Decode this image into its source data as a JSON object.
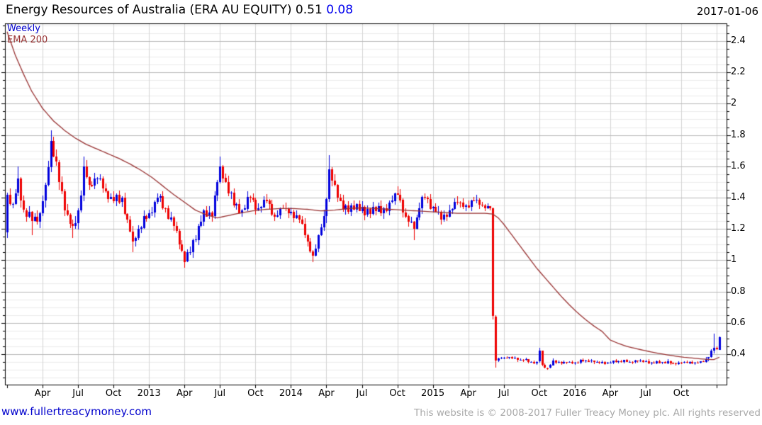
{
  "header": {
    "title_main": "Energy Resources of Australia (ERA AU EQUITY) 0.51",
    "last_price": "0.51",
    "change": "0.08",
    "date": "2017-01-06"
  },
  "legend": {
    "timeframe": "Weekly",
    "overlay": "EMA 200"
  },
  "footer": {
    "link": "www.fullertreacymoney.com",
    "copyright": "This website is © 2008-2017 Fuller Treacy Money plc. All rights reserved"
  },
  "chart_data": {
    "type": "candlestick",
    "title": "Energy Resources of Australia (ERA AU EQUITY)",
    "timeframe": "weekly",
    "x_range": [
      "2012-01",
      "2017-01"
    ],
    "weeks": 262,
    "first_open": 1.18,
    "y_axis": {
      "min": 0.205,
      "max": 2.513,
      "tick_major": 0.2,
      "tick_minor": 0.05,
      "major_ticks": [
        0.4,
        0.6,
        0.8,
        1,
        1.2,
        1.4,
        1.6,
        1.8,
        2,
        2.2,
        2.4
      ],
      "labels": [
        "0.4",
        "0.6",
        "0.8",
        "1",
        "1.2",
        "1.4",
        "1.6",
        "1.8",
        "2",
        "2.2",
        "2.4"
      ]
    },
    "x_labels": [
      {
        "label": "Apr",
        "week": 13
      },
      {
        "label": "Jul",
        "week": 26
      },
      {
        "label": "Oct",
        "week": 39
      },
      {
        "label": "2013",
        "week": 52
      },
      {
        "label": "Apr",
        "week": 65
      },
      {
        "label": "Jul",
        "week": 78
      },
      {
        "label": "Oct",
        "week": 91
      },
      {
        "label": "2014",
        "week": 104
      },
      {
        "label": "Apr",
        "week": 117
      },
      {
        "label": "Jul",
        "week": 130
      },
      {
        "label": "Oct",
        "week": 143
      },
      {
        "label": "2015",
        "week": 156
      },
      {
        "label": "Apr",
        "week": 169
      },
      {
        "label": "Jul",
        "week": 182
      },
      {
        "label": "Oct",
        "week": 195
      },
      {
        "label": "2016",
        "week": 208
      },
      {
        "label": "Apr",
        "week": 221
      },
      {
        "label": "Jul",
        "week": 234
      },
      {
        "label": "Oct",
        "week": 247
      }
    ],
    "x_ticks_unlabeled": [
      0,
      260
    ],
    "close_anchors": [
      [
        0,
        1.42,
        0.05
      ],
      [
        2,
        1.36,
        0.05
      ],
      [
        4,
        1.52,
        0.05
      ],
      [
        6,
        1.32,
        0.05
      ],
      [
        9,
        1.25,
        0.04
      ],
      [
        12,
        1.3,
        0.05
      ],
      [
        14,
        1.48,
        0.06
      ],
      [
        16,
        1.76,
        0.05
      ],
      [
        17,
        1.66,
        0.05
      ],
      [
        19,
        1.5,
        0.06
      ],
      [
        21,
        1.32,
        0.05
      ],
      [
        24,
        1.22,
        0.05
      ],
      [
        26,
        1.32,
        0.05
      ],
      [
        28,
        1.6,
        0.05
      ],
      [
        30,
        1.48,
        0.05
      ],
      [
        33,
        1.52,
        0.04
      ],
      [
        36,
        1.44,
        0.04
      ],
      [
        39,
        1.38,
        0.04
      ],
      [
        42,
        1.4,
        0.04
      ],
      [
        44,
        1.26,
        0.04
      ],
      [
        46,
        1.12,
        0.04
      ],
      [
        48,
        1.2,
        0.04
      ],
      [
        52,
        1.3,
        0.04
      ],
      [
        55,
        1.4,
        0.04
      ],
      [
        58,
        1.33,
        0.04
      ],
      [
        61,
        1.22,
        0.04
      ],
      [
        63,
        1.1,
        0.04
      ],
      [
        65,
        0.99,
        0.03
      ],
      [
        67,
        1.05,
        0.04
      ],
      [
        70,
        1.22,
        0.05
      ],
      [
        72,
        1.32,
        0.05
      ],
      [
        75,
        1.28,
        0.04
      ],
      [
        77,
        1.5,
        0.05
      ],
      [
        78,
        1.6,
        0.05
      ],
      [
        80,
        1.5,
        0.05
      ],
      [
        83,
        1.35,
        0.04
      ],
      [
        86,
        1.32,
        0.04
      ],
      [
        89,
        1.4,
        0.04
      ],
      [
        92,
        1.33,
        0.04
      ],
      [
        95,
        1.38,
        0.04
      ],
      [
        98,
        1.28,
        0.04
      ],
      [
        101,
        1.33,
        0.04
      ],
      [
        104,
        1.31,
        0.04
      ],
      [
        107,
        1.26,
        0.04
      ],
      [
        110,
        1.12,
        0.04
      ],
      [
        112,
        1.03,
        0.03
      ],
      [
        114,
        1.16,
        0.04
      ],
      [
        116,
        1.28,
        0.05
      ],
      [
        118,
        1.58,
        0.05
      ],
      [
        120,
        1.48,
        0.05
      ],
      [
        122,
        1.38,
        0.04
      ],
      [
        125,
        1.31,
        0.04
      ],
      [
        128,
        1.36,
        0.04
      ],
      [
        131,
        1.29,
        0.04
      ],
      [
        134,
        1.34,
        0.04
      ],
      [
        137,
        1.3,
        0.04
      ],
      [
        140,
        1.37,
        0.04
      ],
      [
        143,
        1.42,
        0.04
      ],
      [
        146,
        1.28,
        0.04
      ],
      [
        149,
        1.2,
        0.04
      ],
      [
        151,
        1.33,
        0.04
      ],
      [
        153,
        1.4,
        0.04
      ],
      [
        156,
        1.34,
        0.04
      ],
      [
        159,
        1.26,
        0.04
      ],
      [
        162,
        1.32,
        0.04
      ],
      [
        165,
        1.37,
        0.04
      ],
      [
        168,
        1.35,
        0.04
      ],
      [
        171,
        1.38,
        0.04
      ],
      [
        174,
        1.35,
        0.03
      ],
      [
        177,
        1.33,
        0.02
      ],
      [
        178,
        0.64,
        0.015
      ],
      [
        179,
        0.36,
        0.01
      ],
      [
        181,
        0.375,
        0.012
      ],
      [
        184,
        0.38,
        0.012
      ],
      [
        188,
        0.365,
        0.012
      ],
      [
        192,
        0.35,
        0.012
      ],
      [
        194,
        0.35,
        0.012
      ],
      [
        195,
        0.42,
        0.015
      ],
      [
        196,
        0.33,
        0.012
      ],
      [
        198,
        0.31,
        0.01
      ],
      [
        200,
        0.36,
        0.012
      ],
      [
        203,
        0.34,
        0.012
      ],
      [
        206,
        0.35,
        0.012
      ],
      [
        208,
        0.345,
        0.012
      ],
      [
        212,
        0.36,
        0.012
      ],
      [
        216,
        0.35,
        0.012
      ],
      [
        220,
        0.345,
        0.012
      ],
      [
        224,
        0.355,
        0.012
      ],
      [
        228,
        0.35,
        0.012
      ],
      [
        232,
        0.36,
        0.012
      ],
      [
        236,
        0.345,
        0.012
      ],
      [
        240,
        0.35,
        0.012
      ],
      [
        244,
        0.34,
        0.012
      ],
      [
        248,
        0.35,
        0.012
      ],
      [
        252,
        0.345,
        0.01
      ],
      [
        255,
        0.35,
        0.01
      ],
      [
        257,
        0.38,
        0.015
      ],
      [
        258,
        0.42,
        0.015
      ],
      [
        259,
        0.44,
        0.02
      ],
      [
        260,
        0.43,
        0.012
      ],
      [
        261,
        0.51,
        0.005
      ]
    ],
    "spike_highs": [
      [
        4,
        1.6
      ],
      [
        16,
        1.83
      ],
      [
        28,
        1.66
      ],
      [
        78,
        1.66
      ],
      [
        118,
        1.67
      ],
      [
        143,
        1.47
      ],
      [
        195,
        0.44
      ],
      [
        259,
        0.53
      ]
    ],
    "spike_lows": [
      [
        9,
        1.16
      ],
      [
        24,
        1.14
      ],
      [
        46,
        1.05
      ],
      [
        65,
        0.95
      ],
      [
        112,
        0.99
      ],
      [
        149,
        1.13
      ],
      [
        178,
        0.62
      ],
      [
        179,
        0.315
      ],
      [
        198,
        0.3
      ]
    ],
    "ema200_anchors": [
      [
        0,
        2.46
      ],
      [
        3,
        2.31
      ],
      [
        6,
        2.19
      ],
      [
        9,
        2.08
      ],
      [
        13,
        1.97
      ],
      [
        17,
        1.89
      ],
      [
        21,
        1.83
      ],
      [
        25,
        1.78
      ],
      [
        29,
        1.74
      ],
      [
        33,
        1.71
      ],
      [
        37,
        1.68
      ],
      [
        41,
        1.65
      ],
      [
        45,
        1.615
      ],
      [
        49,
        1.575
      ],
      [
        53,
        1.53
      ],
      [
        57,
        1.475
      ],
      [
        61,
        1.42
      ],
      [
        65,
        1.37
      ],
      [
        69,
        1.32
      ],
      [
        73,
        1.29
      ],
      [
        77,
        1.27
      ],
      [
        81,
        1.285
      ],
      [
        85,
        1.3
      ],
      [
        90,
        1.315
      ],
      [
        95,
        1.325
      ],
      [
        100,
        1.33
      ],
      [
        105,
        1.33
      ],
      [
        110,
        1.325
      ],
      [
        115,
        1.315
      ],
      [
        120,
        1.32
      ],
      [
        125,
        1.33
      ],
      [
        130,
        1.335
      ],
      [
        135,
        1.33
      ],
      [
        140,
        1.325
      ],
      [
        145,
        1.32
      ],
      [
        150,
        1.315
      ],
      [
        155,
        1.31
      ],
      [
        160,
        1.305
      ],
      [
        165,
        1.3
      ],
      [
        170,
        1.3
      ],
      [
        175,
        1.3
      ],
      [
        178,
        1.295
      ],
      [
        180,
        1.27
      ],
      [
        182,
        1.23
      ],
      [
        185,
        1.16
      ],
      [
        188,
        1.09
      ],
      [
        191,
        1.02
      ],
      [
        194,
        0.95
      ],
      [
        197,
        0.89
      ],
      [
        200,
        0.83
      ],
      [
        203,
        0.77
      ],
      [
        206,
        0.715
      ],
      [
        209,
        0.665
      ],
      [
        212,
        0.62
      ],
      [
        215,
        0.58
      ],
      [
        218,
        0.545
      ],
      [
        221,
        0.49
      ],
      [
        224,
        0.468
      ],
      [
        227,
        0.45
      ],
      [
        230,
        0.437
      ],
      [
        233,
        0.425
      ],
      [
        236,
        0.414
      ],
      [
        239,
        0.404
      ],
      [
        242,
        0.395
      ],
      [
        245,
        0.387
      ],
      [
        248,
        0.38
      ],
      [
        251,
        0.375
      ],
      [
        254,
        0.37
      ],
      [
        257,
        0.366
      ],
      [
        259,
        0.365
      ],
      [
        261,
        0.38
      ]
    ],
    "colors": {
      "up_candle": "#0000dd",
      "down_candle": "#ee0000",
      "ema_line": "#993333",
      "grid_major": "#b9b9b9",
      "grid_minor": "#ececec",
      "grid_vertical": "#d4d4d4",
      "frame": "#000000",
      "legend_timeframe": "#0000cc",
      "change_text": "#0000ee",
      "link": "#0000cc",
      "copyright": "#a9a9a9"
    },
    "legend_position": "top-left",
    "grid": true
  }
}
